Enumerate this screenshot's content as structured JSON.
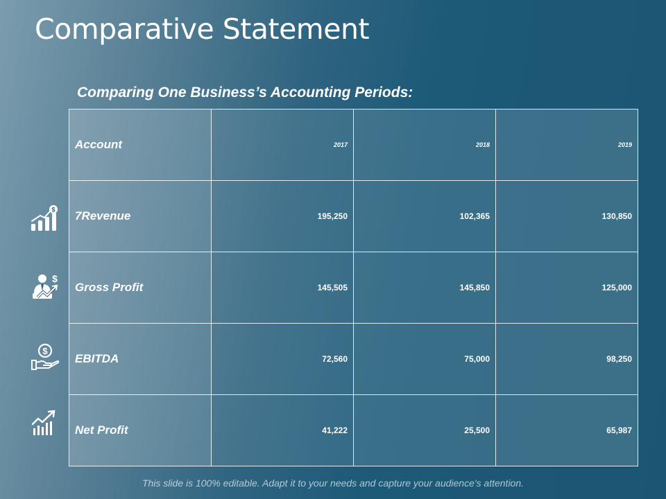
{
  "title": "Comparative Statement",
  "subtitle": "Comparing One Business’s Accounting Periods:",
  "table": {
    "header": {
      "label": "Account",
      "years": [
        "2017",
        "2018",
        "2019"
      ]
    },
    "rows": [
      {
        "label": "7Revenue",
        "icon": "growth-bar-chart-dollar-icon",
        "values": [
          "195,250",
          "102,365",
          "130,850"
        ]
      },
      {
        "label": "Gross Profit",
        "icon": "businessman-dollar-icon",
        "values": [
          "145,505",
          "145,850",
          "125,000"
        ]
      },
      {
        "label": "EBITDA",
        "icon": "hand-holding-coin-icon",
        "values": [
          "72,560",
          "75,000",
          "98,250"
        ]
      },
      {
        "label": "Net Profit",
        "icon": "rising-chart-icon",
        "values": [
          "41,222",
          "25,500",
          "65,987"
        ]
      }
    ]
  },
  "footer": "This slide is 100% editable. Adapt it to your needs and capture your audience's attention."
}
